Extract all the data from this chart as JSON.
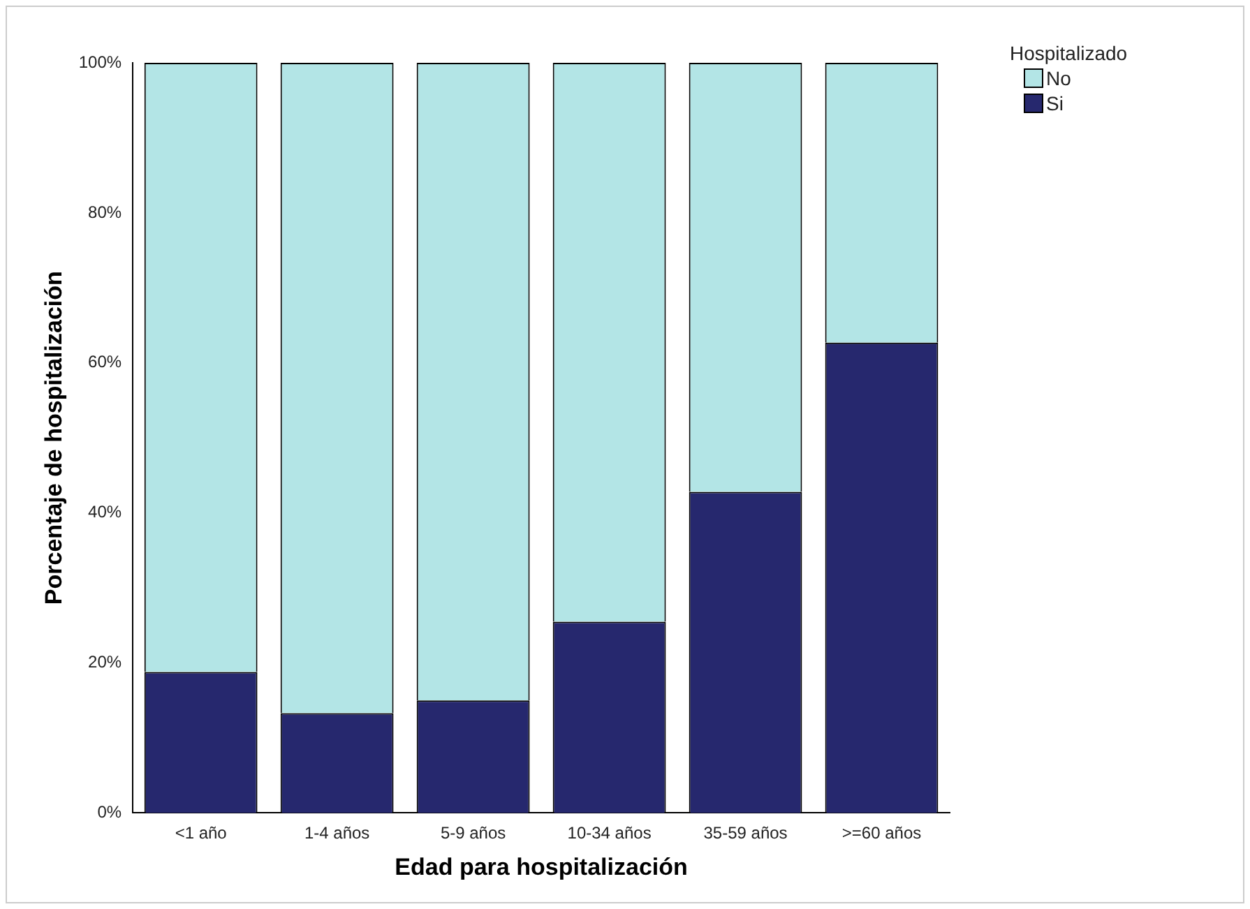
{
  "chart_data": {
    "type": "bar",
    "stacked": true,
    "xlabel": "Edad para hospitalización",
    "ylabel": "Porcentaje de hospitalización",
    "legend_title": "Hospitalizado",
    "legend": "top right",
    "grid": false,
    "categories": [
      "<1 año",
      "1-4 años",
      "5-9 años",
      "10-34 años",
      "35-59 años",
      ">=60 años"
    ],
    "series": [
      {
        "name": "Si",
        "color": "#26286e",
        "values": [
          18.8,
          13.3,
          15.0,
          25.5,
          42.8,
          62.7
        ]
      },
      {
        "name": "No",
        "color": "#b3e5e6",
        "values": [
          81.2,
          86.7,
          85.0,
          74.5,
          57.2,
          37.3
        ]
      }
    ],
    "ylim": [
      0,
      100
    ],
    "yticks": [
      {
        "value": 0,
        "label": "0%"
      },
      {
        "value": 20,
        "label": "20%"
      },
      {
        "value": 40,
        "label": "40%"
      },
      {
        "value": 60,
        "label": "60%"
      },
      {
        "value": 80,
        "label": "80%"
      },
      {
        "value": 100,
        "label": "100%"
      }
    ]
  }
}
